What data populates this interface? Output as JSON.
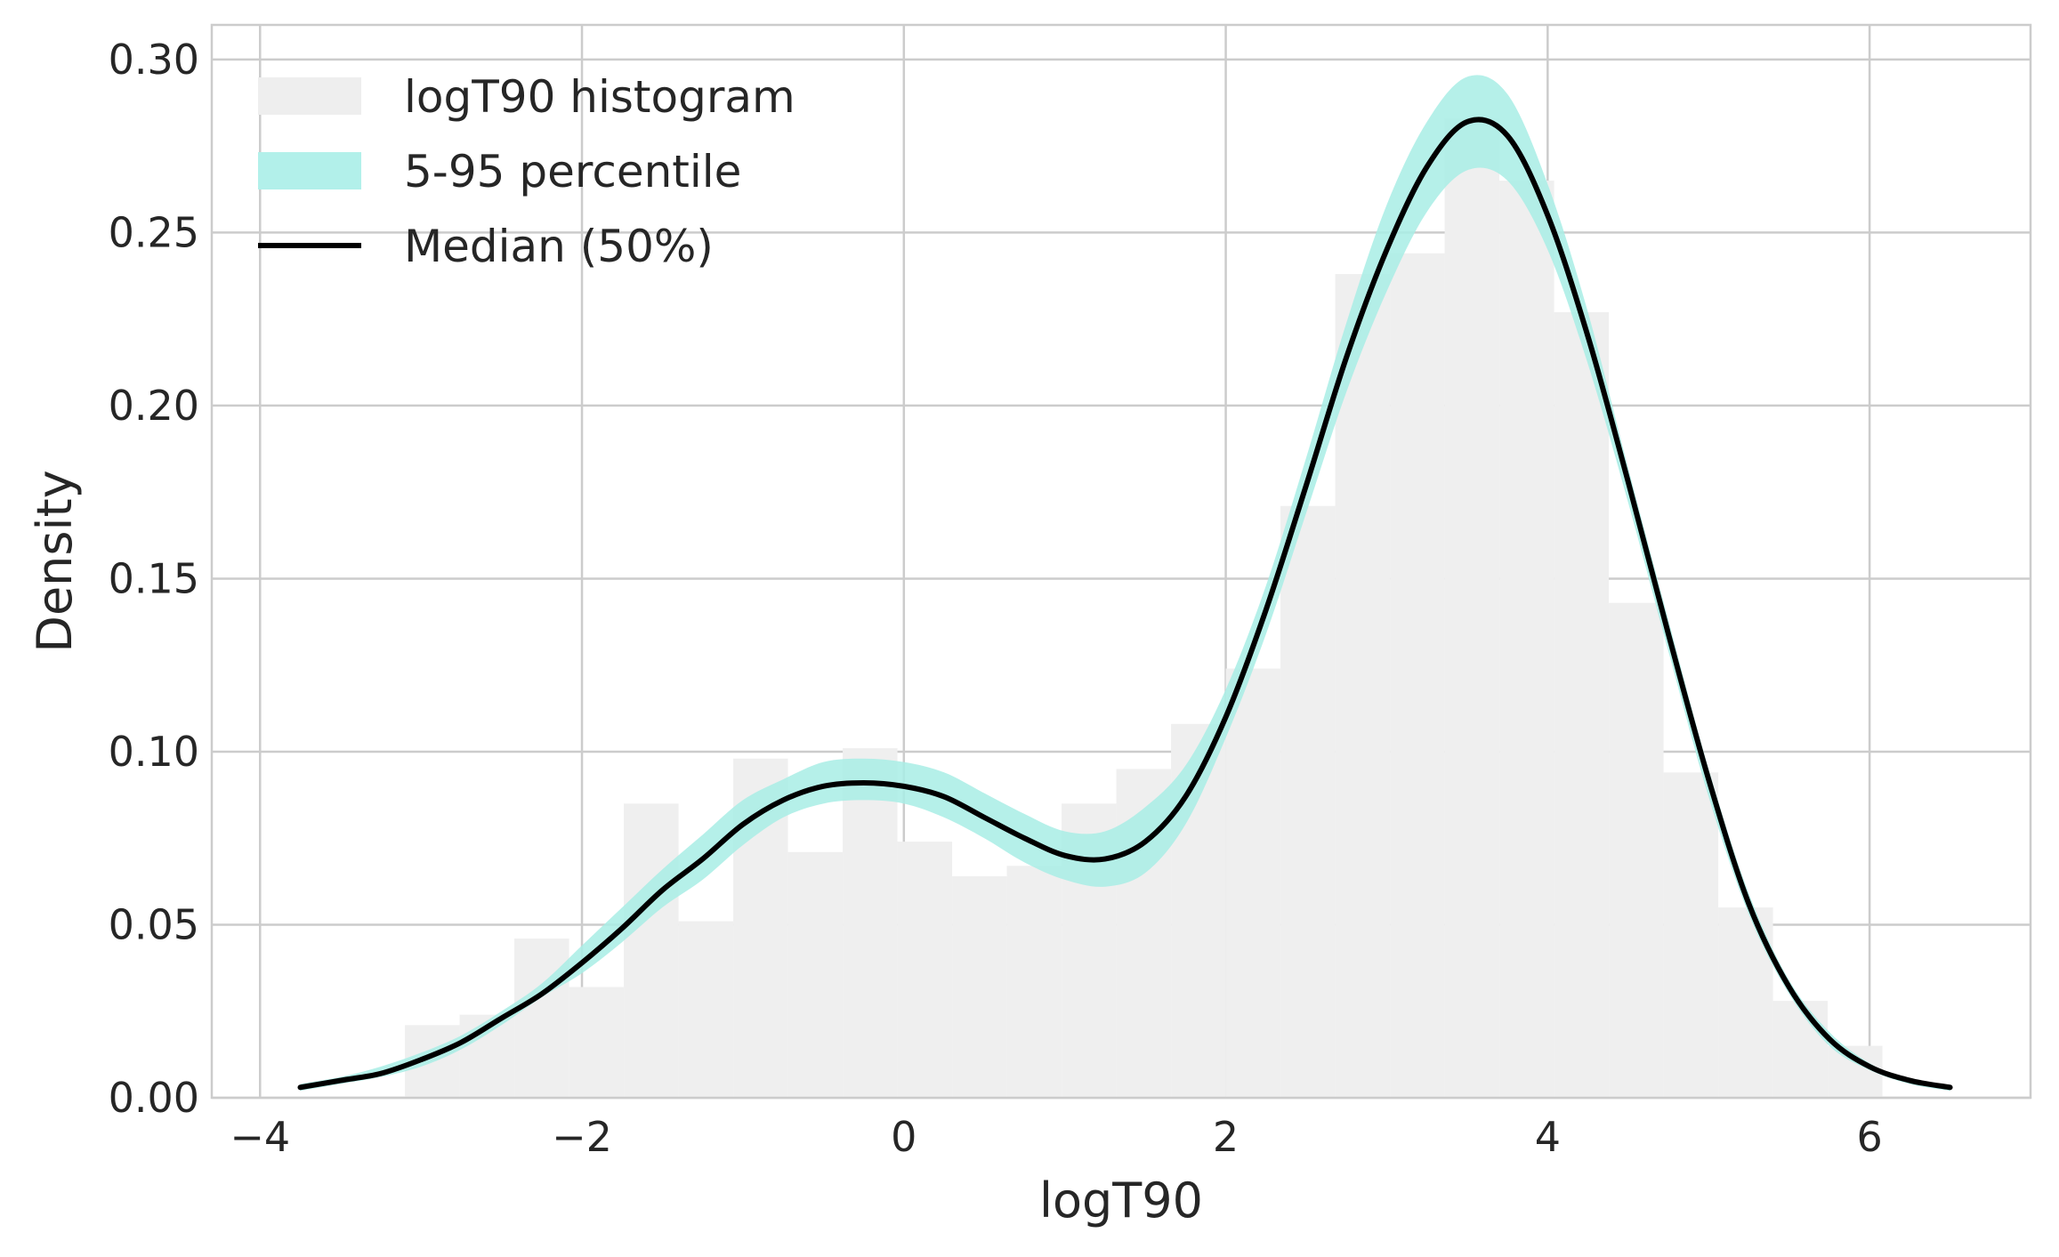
{
  "chart_data": {
    "type": "area",
    "xlabel": "logT90",
    "ylabel": "Density",
    "xlim": [
      -4.3,
      7.0
    ],
    "ylim": [
      0,
      0.31
    ],
    "xticks": [
      {
        "value": -4,
        "label": "−4"
      },
      {
        "value": -2,
        "label": "−2"
      },
      {
        "value": 0,
        "label": "0"
      },
      {
        "value": 2,
        "label": "2"
      },
      {
        "value": 4,
        "label": "4"
      },
      {
        "value": 6,
        "label": "6"
      }
    ],
    "yticks": [
      {
        "value": 0.0,
        "label": "0.00"
      },
      {
        "value": 0.05,
        "label": "0.05"
      },
      {
        "value": 0.1,
        "label": "0.10"
      },
      {
        "value": 0.15,
        "label": "0.15"
      },
      {
        "value": 0.2,
        "label": "0.20"
      },
      {
        "value": 0.25,
        "label": "0.25"
      },
      {
        "value": 0.3,
        "label": "0.30"
      }
    ],
    "grid": true,
    "legend_position": "top-left",
    "legend": [
      {
        "label": "logT90 histogram",
        "kind": "patch",
        "color": "#eeeeee"
      },
      {
        "label": "5-95 percentile",
        "kind": "patch",
        "color": "#b2f0ea"
      },
      {
        "label": "Median (50%)",
        "kind": "line",
        "color": "#000000"
      }
    ],
    "histogram": {
      "name": "logT90 histogram",
      "color": "#efefef",
      "bin_edges": [
        -3.1,
        -2.76,
        -2.42,
        -2.08,
        -1.74,
        -1.4,
        -1.06,
        -0.72,
        -0.38,
        -0.04,
        0.3,
        0.64,
        0.98,
        1.32,
        1.66,
        2.0,
        2.34,
        2.68,
        3.02,
        3.36,
        3.7,
        4.04,
        4.38,
        4.72,
        5.06,
        5.4,
        5.74,
        6.08
      ],
      "densities": [
        0.021,
        0.024,
        0.046,
        0.032,
        0.085,
        0.051,
        0.098,
        0.071,
        0.101,
        0.074,
        0.064,
        0.067,
        0.085,
        0.095,
        0.108,
        0.124,
        0.171,
        0.238,
        0.244,
        0.283,
        0.265,
        0.227,
        0.143,
        0.094,
        0.055,
        0.028,
        0.015
      ]
    },
    "band": {
      "name": "5-95 percentile",
      "color": "#a8ede5",
      "x": [
        -3.75,
        -3.5,
        -3.25,
        -3.0,
        -2.75,
        -2.5,
        -2.25,
        -2.0,
        -1.75,
        -1.5,
        -1.25,
        -1.0,
        -0.75,
        -0.5,
        -0.25,
        0.0,
        0.25,
        0.5,
        0.75,
        1.0,
        1.25,
        1.5,
        1.75,
        2.0,
        2.25,
        2.5,
        2.75,
        3.0,
        3.25,
        3.5,
        3.75,
        4.0,
        4.25,
        4.5,
        4.75,
        5.0,
        5.25,
        5.5,
        5.75,
        6.0,
        6.25,
        6.5
      ],
      "lower": [
        0.002,
        0.004,
        0.006,
        0.009,
        0.014,
        0.021,
        0.029,
        0.036,
        0.045,
        0.055,
        0.063,
        0.073,
        0.081,
        0.085,
        0.086,
        0.085,
        0.081,
        0.075,
        0.068,
        0.063,
        0.061,
        0.065,
        0.079,
        0.104,
        0.134,
        0.169,
        0.204,
        0.233,
        0.256,
        0.268,
        0.265,
        0.245,
        0.212,
        0.172,
        0.129,
        0.087,
        0.053,
        0.03,
        0.015,
        0.008,
        0.004,
        0.002
      ],
      "upper": [
        0.004,
        0.006,
        0.009,
        0.013,
        0.018,
        0.025,
        0.033,
        0.044,
        0.055,
        0.066,
        0.076,
        0.086,
        0.092,
        0.097,
        0.098,
        0.097,
        0.094,
        0.088,
        0.082,
        0.077,
        0.077,
        0.084,
        0.096,
        0.118,
        0.148,
        0.185,
        0.224,
        0.258,
        0.282,
        0.295,
        0.29,
        0.264,
        0.227,
        0.182,
        0.138,
        0.095,
        0.059,
        0.034,
        0.019,
        0.01,
        0.005,
        0.003
      ]
    },
    "series": [
      {
        "name": "Median (50%)",
        "color": "#000000",
        "x": [
          -3.75,
          -3.5,
          -3.25,
          -3.0,
          -2.75,
          -2.5,
          -2.25,
          -2.0,
          -1.75,
          -1.5,
          -1.25,
          -1.0,
          -0.75,
          -0.5,
          -0.25,
          0.0,
          0.25,
          0.5,
          0.75,
          1.0,
          1.25,
          1.5,
          1.75,
          2.0,
          2.25,
          2.5,
          2.75,
          3.0,
          3.25,
          3.5,
          3.75,
          4.0,
          4.25,
          4.5,
          4.75,
          5.0,
          5.25,
          5.5,
          5.75,
          6.0,
          6.25,
          6.5
        ],
        "y": [
          0.003,
          0.005,
          0.007,
          0.011,
          0.016,
          0.023,
          0.03,
          0.039,
          0.049,
          0.06,
          0.069,
          0.079,
          0.086,
          0.09,
          0.091,
          0.09,
          0.087,
          0.081,
          0.075,
          0.07,
          0.069,
          0.074,
          0.087,
          0.11,
          0.141,
          0.177,
          0.214,
          0.245,
          0.269,
          0.282,
          0.278,
          0.255,
          0.22,
          0.178,
          0.134,
          0.092,
          0.056,
          0.032,
          0.017,
          0.009,
          0.005,
          0.003
        ]
      }
    ]
  }
}
